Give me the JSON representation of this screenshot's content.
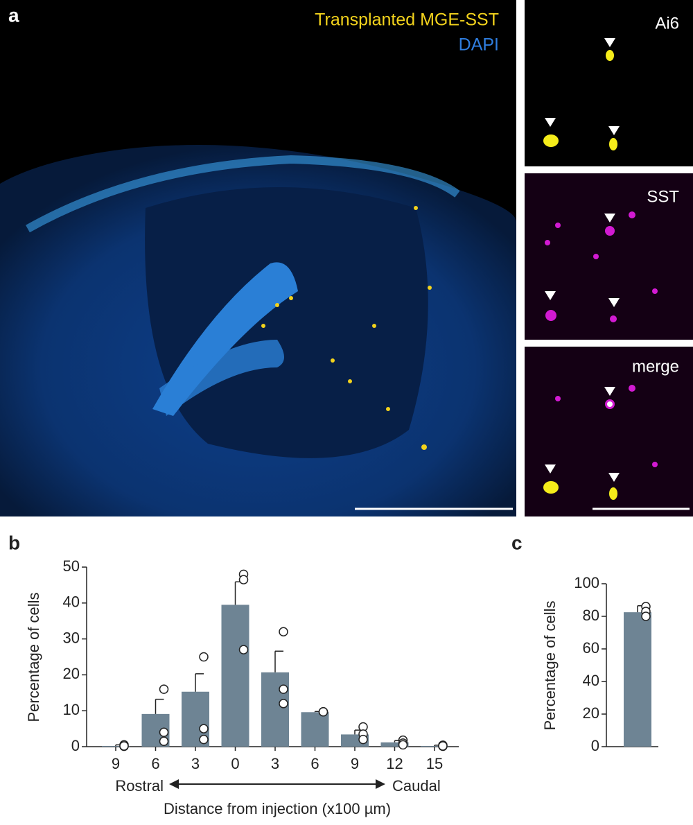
{
  "panel_labels": [
    "a",
    "b",
    "c"
  ],
  "image_labels": {
    "main": [
      "Transplanted MGE-SST",
      "DAPI"
    ],
    "insets": [
      "Ai6",
      "SST",
      "merge"
    ]
  },
  "chart_data": [
    {
      "type": "bar",
      "ylabel": "Percentage of cells",
      "xlabel": "Distance from injection (x100 µm)",
      "annotations": [
        "Rostral",
        "Caudal"
      ],
      "categories": [
        "9",
        "6",
        "3",
        "0",
        "3",
        "6",
        "9",
        "12",
        "15"
      ],
      "values": [
        0.2,
        9.1,
        15.3,
        39.5,
        20.7,
        9.6,
        3.4,
        1.2,
        0.2
      ],
      "error": [
        0.3,
        4.1,
        5,
        6.4,
        5.9,
        0.2,
        1.2,
        0.5,
        0.2
      ],
      "points": [
        [
          0.5,
          0.1,
          0.2
        ],
        [
          16,
          4,
          1.5
        ],
        [
          25,
          5,
          2
        ],
        [
          48,
          46.5,
          27
        ],
        [
          32,
          16,
          12
        ],
        [
          9.7,
          9.7,
          9.7
        ],
        [
          5.5,
          3.5,
          2
        ],
        [
          1.8,
          1,
          0.5
        ],
        [
          0.4,
          0.1,
          0.2
        ]
      ],
      "color": "#6e8494",
      "ylim": [
        0,
        50
      ],
      "yticks": [
        0,
        10,
        20,
        30,
        40,
        50
      ]
    },
    {
      "type": "bar",
      "ylabel": "Percentage of cells",
      "categories": [
        null
      ],
      "values": [
        82.5
      ],
      "error": [
        4
      ],
      "points": [
        [
          86,
          83,
          80
        ]
      ],
      "color": "#6e8494",
      "ylim": [
        0,
        100
      ],
      "yticks": [
        0,
        20,
        40,
        60,
        80,
        100
      ]
    }
  ]
}
